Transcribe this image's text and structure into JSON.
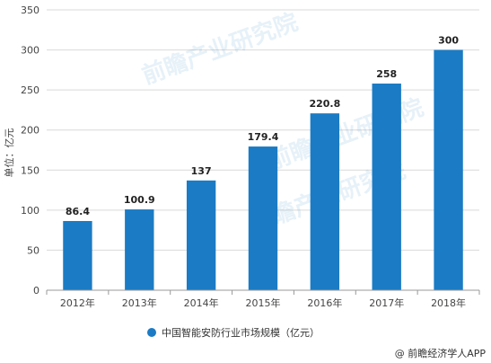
{
  "chart_data": {
    "type": "bar",
    "categories": [
      "2012年",
      "2013年",
      "2014年",
      "2015年",
      "2016年",
      "2017年",
      "2018年"
    ],
    "series": [
      {
        "name": "中国智能安防行业市场规模（亿元）",
        "values": [
          86.4,
          100.9,
          137,
          179.4,
          220.8,
          258,
          300
        ]
      }
    ],
    "data_labels": [
      "86.4",
      "100.9",
      "137",
      "179.4",
      "220.8",
      "258",
      "300"
    ],
    "ylabel": "单位：亿元",
    "ylim": [
      0,
      350
    ],
    "yticks": [
      0,
      50,
      100,
      150,
      200,
      250,
      300,
      350
    ],
    "grid": true,
    "legend_position": "bottom",
    "bar_color": "#1b7bc4",
    "watermark": "前瞻产业研究院"
  },
  "source_note": "@ 前瞻经济学人APP"
}
